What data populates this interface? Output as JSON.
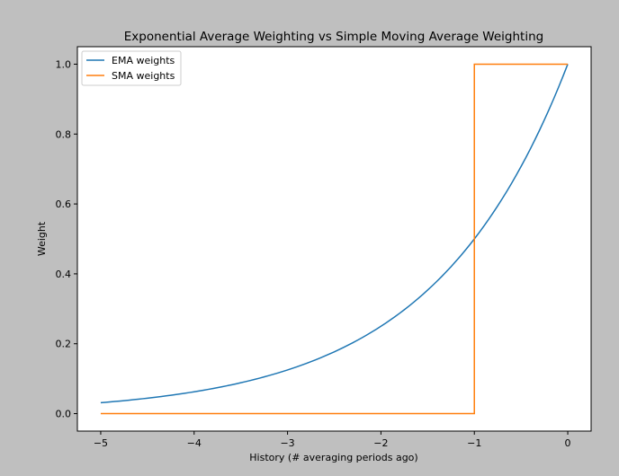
{
  "chart_data": {
    "type": "line",
    "title": "Exponential Average Weighting vs Simple Moving Average Weighting",
    "xlabel": "History (# averaging periods ago)",
    "ylabel": "Weight",
    "xlim": [
      -5.25,
      0.25
    ],
    "ylim": [
      -0.05,
      1.05
    ],
    "xticks": [
      -5,
      -4,
      -3,
      -2,
      -1,
      0
    ],
    "xtick_labels": [
      "−5",
      "−4",
      "−3",
      "−2",
      "−1",
      "0"
    ],
    "yticks": [
      0.0,
      0.2,
      0.4,
      0.6,
      0.8,
      1.0
    ],
    "ytick_labels": [
      "0.0",
      "0.2",
      "0.4",
      "0.6",
      "0.8",
      "1.0"
    ],
    "grid": false,
    "legend_position": "top-left",
    "series": [
      {
        "name": "EMA weights",
        "color": "#1f77b4",
        "x": [
          -5,
          -4.5,
          -4,
          -3.5,
          -3,
          -2.5,
          -2,
          -1.5,
          -1,
          -0.5,
          0
        ],
        "y": [
          0.031,
          0.044,
          0.063,
          0.088,
          0.125,
          0.177,
          0.25,
          0.354,
          0.5,
          0.707,
          1.0
        ]
      },
      {
        "name": "SMA weights",
        "color": "#ff7f0e",
        "x": [
          -5,
          -1,
          -1,
          0
        ],
        "y": [
          0.0,
          0.0,
          1.0,
          1.0
        ]
      }
    ]
  }
}
